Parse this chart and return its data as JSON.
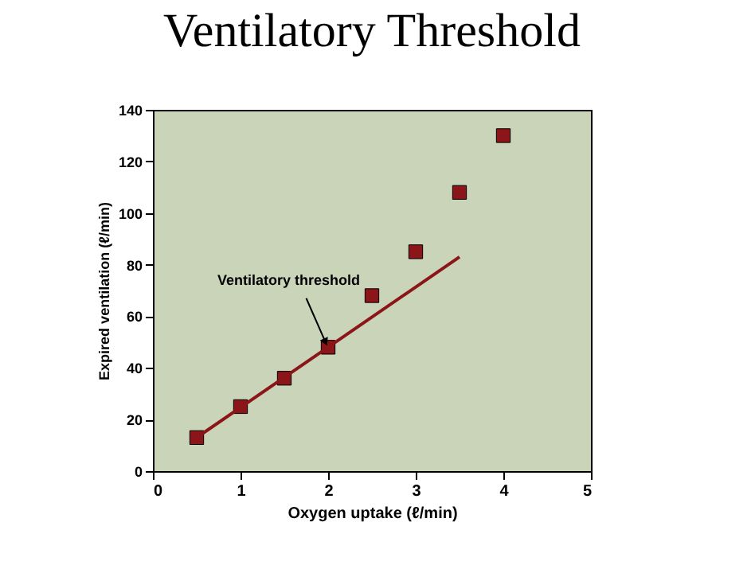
{
  "chart_data": {
    "type": "scatter",
    "title": "Ventilatory Threshold",
    "xlabel": "Oxygen uptake (ℓ/min)",
    "ylabel": "Expired ventilation (ℓ/min)",
    "x": [
      0.5,
      1,
      1.5,
      2,
      2.5,
      3,
      3.5,
      4
    ],
    "series": [
      {
        "color": "#8b1518",
        "values": [
          13,
          25,
          36,
          48,
          68,
          85,
          108,
          130
        ],
        "marker": "square"
      },
      {
        "type": "line",
        "color": "#8b1518",
        "x": [
          0.5,
          3.5
        ],
        "values": [
          13,
          83
        ],
        "line_style": "solid"
      }
    ],
    "xlim": [
      0,
      5
    ],
    "xticks": [
      0,
      1,
      2,
      3,
      4,
      5
    ],
    "ylim": [
      0,
      140
    ],
    "yticks": [
      0,
      20,
      40,
      60,
      80,
      100,
      120,
      140
    ],
    "grid": false,
    "annotations": [
      {
        "text": "Ventilatory threshold",
        "x": 2,
        "y": 48
      }
    ]
  }
}
